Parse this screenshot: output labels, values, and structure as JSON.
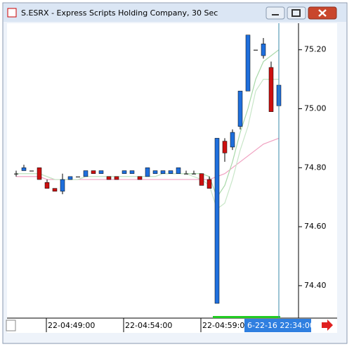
{
  "window_title": "S.ESRX - Express Scripts Holding Company, 30 Sec",
  "chart_data": {
    "type": "candlestick",
    "categories": [
      null,
      null,
      null,
      null,
      "22-04:49:00",
      null,
      null,
      null,
      null,
      null,
      null,
      null,
      null,
      null,
      "22-04:54:00",
      null,
      null,
      null,
      null,
      null,
      null,
      null,
      null,
      null,
      "22-04:59:00",
      null,
      null,
      null,
      null,
      null,
      null,
      null,
      null,
      null,
      null
    ],
    "open": [
      74.78,
      74.79,
      74.79,
      74.8,
      74.75,
      74.73,
      74.72,
      74.76,
      74.77,
      74.77,
      74.79,
      74.78,
      74.77,
      74.77,
      74.78,
      74.78,
      74.77,
      74.77,
      74.78,
      74.78,
      74.78,
      74.78,
      74.78,
      74.78,
      74.78,
      74.76,
      74.34,
      74.89,
      74.87,
      74.94,
      75.06,
      75.2,
      75.18,
      75.14,
      75.01
    ],
    "high": [
      74.79,
      74.81,
      74.79,
      74.8,
      74.76,
      74.73,
      74.78,
      74.77,
      74.77,
      74.79,
      74.79,
      74.79,
      74.77,
      74.77,
      74.79,
      74.79,
      74.77,
      74.8,
      74.79,
      74.79,
      74.79,
      74.8,
      74.79,
      74.79,
      74.78,
      74.77,
      74.9,
      74.9,
      74.93,
      75.06,
      75.25,
      75.2,
      75.24,
      75.16,
      75.14
    ],
    "low": [
      74.77,
      74.79,
      74.79,
      74.76,
      74.73,
      74.72,
      74.71,
      74.76,
      74.77,
      74.77,
      74.78,
      74.78,
      74.76,
      74.76,
      74.78,
      74.78,
      74.76,
      74.77,
      74.78,
      74.78,
      74.78,
      74.78,
      74.78,
      74.78,
      74.74,
      74.73,
      74.34,
      74.82,
      74.86,
      74.93,
      75.06,
      75.2,
      75.17,
      74.99,
      74.98
    ],
    "close": [
      74.78,
      74.8,
      74.79,
      74.76,
      74.73,
      74.72,
      74.76,
      74.77,
      74.77,
      74.79,
      74.78,
      74.79,
      74.76,
      74.76,
      74.79,
      74.79,
      74.76,
      74.8,
      74.79,
      74.79,
      74.79,
      74.8,
      74.78,
      74.78,
      74.74,
      74.73,
      74.9,
      74.85,
      74.92,
      75.06,
      75.25,
      75.2,
      75.22,
      74.99,
      75.08
    ],
    "up_color": "#1f6fdc",
    "down_color": "#cc1010",
    "series": [
      {
        "color": "#f0a0c0",
        "values": [
          74.77,
          74.77,
          74.77,
          74.77,
          74.76,
          74.76,
          74.76,
          74.76,
          74.76,
          74.76,
          74.76,
          74.76,
          74.76,
          74.76,
          74.76,
          74.76,
          74.76,
          74.76,
          74.76,
          74.76,
          74.76,
          74.76,
          74.76,
          74.76,
          74.76,
          74.76,
          74.77,
          74.78,
          74.8,
          74.82,
          74.84,
          74.86,
          74.88,
          74.89,
          74.9
        ]
      },
      {
        "color": "#a8d8a8",
        "values": [
          74.78,
          74.78,
          74.78,
          74.78,
          74.77,
          74.76,
          74.76,
          74.76,
          74.76,
          74.77,
          74.77,
          74.77,
          74.77,
          74.77,
          74.77,
          74.77,
          74.77,
          74.77,
          74.77,
          74.78,
          74.78,
          74.78,
          74.78,
          74.78,
          74.78,
          74.77,
          74.7,
          74.74,
          74.82,
          74.92,
          75.0,
          75.1,
          75.16,
          75.18,
          75.2
        ]
      },
      {
        "color": "#c8e6c8",
        "values": [
          74.78,
          74.78,
          74.78,
          74.78,
          74.77,
          74.76,
          74.76,
          74.76,
          74.76,
          74.77,
          74.77,
          74.77,
          74.77,
          74.77,
          74.77,
          74.77,
          74.77,
          74.77,
          74.77,
          74.78,
          74.78,
          74.78,
          74.78,
          74.77,
          74.76,
          74.74,
          74.66,
          74.68,
          74.76,
          74.86,
          74.94,
          75.06,
          75.1,
          75.1,
          75.1
        ]
      }
    ],
    "ylim": [
      74.29,
      75.29
    ],
    "yticks": [
      {
        "value": 74.4,
        "label": "74.40"
      },
      {
        "value": 74.6,
        "label": "74.60"
      },
      {
        "value": 74.8,
        "label": "74.80"
      },
      {
        "value": 75.0,
        "label": "75.00"
      },
      {
        "value": 75.2,
        "label": "75.20"
      }
    ],
    "cursor_label": "6-22-16 22:34:00",
    "cursor_color": "#3a8aa8"
  }
}
